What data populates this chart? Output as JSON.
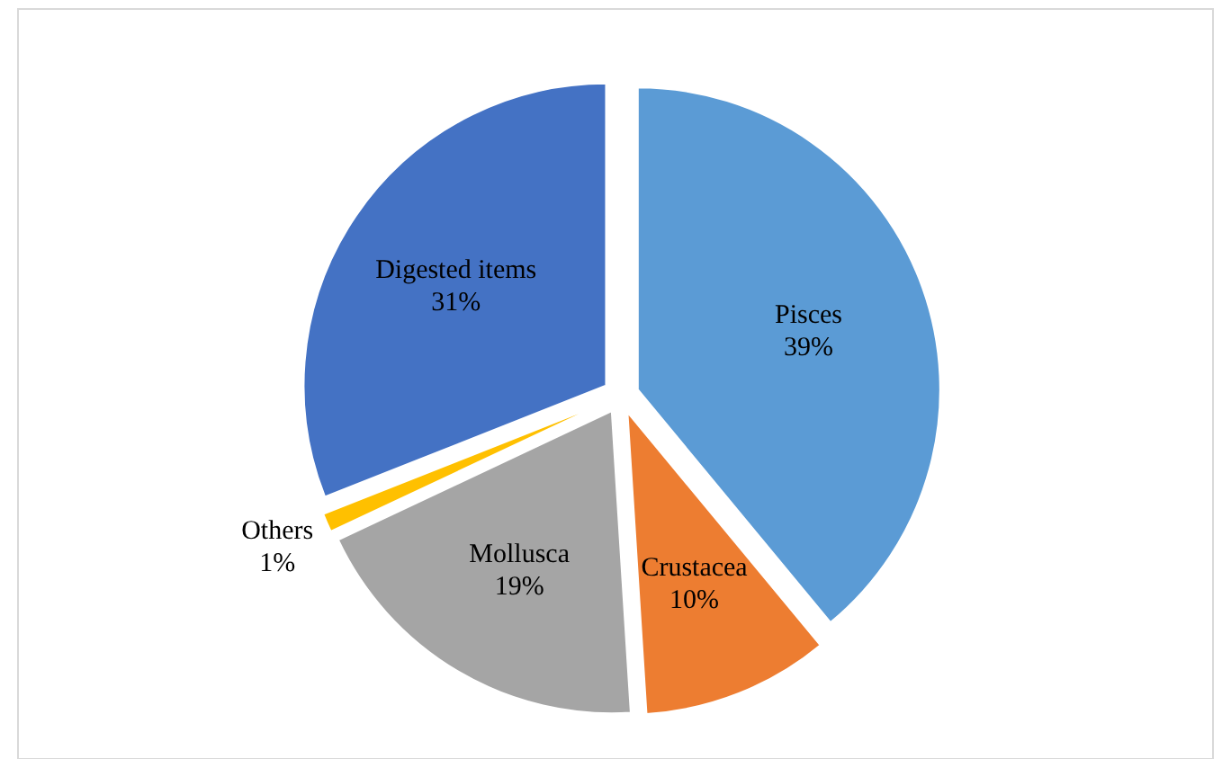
{
  "chart_data": {
    "type": "pie",
    "categories": [
      "Pisces",
      "Crustacea",
      "Mollusca",
      "Others",
      "Digested items"
    ],
    "values": [
      39,
      10,
      19,
      1,
      31
    ],
    "colors": [
      "#5b9bd5",
      "#ed7d31",
      "#a5a5a5",
      "#ffc000",
      "#4472c4"
    ],
    "value_labels": [
      "39%",
      "10%",
      "19%",
      "1%",
      "31%"
    ],
    "legend": false
  }
}
